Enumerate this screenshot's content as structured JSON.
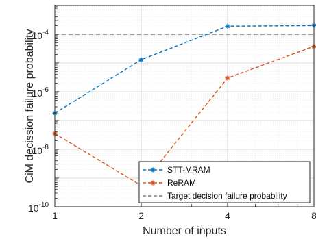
{
  "chart_data": {
    "type": "line",
    "title": "",
    "xlabel": "Number of inputs",
    "ylabel": "CiM decission failure probability",
    "x_scale": "log2",
    "y_scale": "log",
    "xlim": [
      1,
      8
    ],
    "ylim": [
      1e-10,
      0.001
    ],
    "x_ticks": [
      1,
      2,
      4,
      8
    ],
    "x_tick_labels": [
      "1",
      "2",
      "4",
      "8"
    ],
    "y_ticks": [
      1e-10,
      1e-08,
      1e-06,
      0.0001
    ],
    "y_tick_labels": [
      {
        "base": "10",
        "exp": "-10"
      },
      {
        "base": "10",
        "exp": "-8"
      },
      {
        "base": "10",
        "exp": "-6"
      },
      {
        "base": "10",
        "exp": "-4"
      }
    ],
    "grid": true,
    "legend_position": "bottom-right",
    "x": [
      1,
      2,
      4,
      8
    ],
    "series": [
      {
        "name": "STT-MRAM",
        "values": [
          1.8e-07,
          1.3e-05,
          0.00019,
          0.0002
        ],
        "color": "#0072BD",
        "style": "dashed",
        "marker": "asterisk"
      },
      {
        "name": "ReRAM",
        "values": [
          3.5e-08,
          5.5e-10,
          3e-06,
          3.8e-05
        ],
        "color": "#D95319",
        "style": "dashed",
        "marker": "asterisk"
      }
    ],
    "reference_line": {
      "name": "Target decision failure probability",
      "value": 0.0001,
      "color": "#7F7F7F",
      "style": "dashed"
    }
  }
}
